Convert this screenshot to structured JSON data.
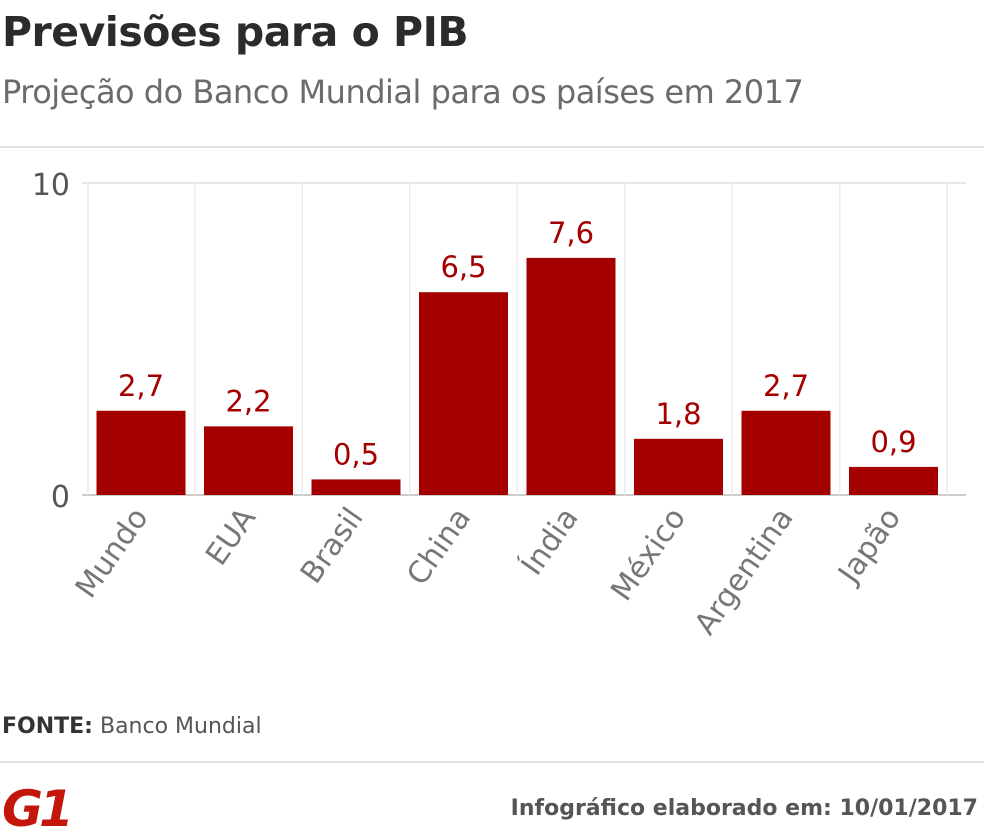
{
  "header": {
    "title": "Previsões para o PIB",
    "subtitle": "Projeção do Banco Mundial para os países em 2017"
  },
  "chart_data": {
    "type": "bar",
    "categories": [
      "Mundo",
      "EUA",
      "Brasil",
      "China",
      "Índia",
      "México",
      "Argentina",
      "Japão"
    ],
    "values": [
      2.7,
      2.2,
      0.5,
      6.5,
      7.6,
      1.8,
      2.7,
      0.9
    ],
    "value_labels": [
      "2,7",
      "2,2",
      "0,5",
      "6,5",
      "7,6",
      "1,8",
      "2,7",
      "0,9"
    ],
    "y_ticks": [
      0,
      10
    ],
    "y_tick_labels": [
      "0",
      "10"
    ],
    "ylim": [
      0,
      10
    ],
    "grid": true,
    "bar_color": "#a50000",
    "value_label_color": "#a50000"
  },
  "source": {
    "label": "FONTE:",
    "text": "Banco Mundial"
  },
  "footer": {
    "logo_text": "G1",
    "logo_color": "#c4170c",
    "note": "Infográfico elaborado em: 10/01/2017"
  }
}
